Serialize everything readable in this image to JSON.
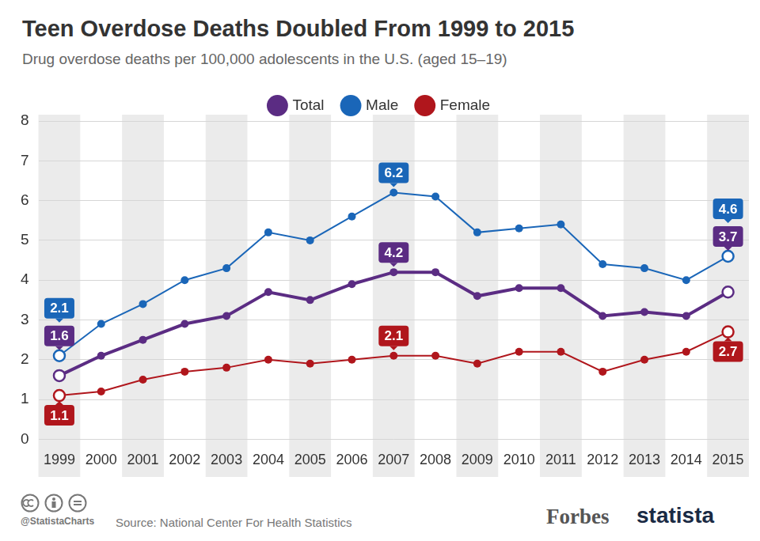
{
  "chart_data": {
    "type": "line",
    "title": "Teen Overdose Deaths Doubled From 1999 to 2015",
    "subtitle": "Drug overdose deaths per 100,000 adolescents in the U.S. (aged 15–19)",
    "categories": [
      "1999",
      "2000",
      "2001",
      "2002",
      "2003",
      "2004",
      "2005",
      "2006",
      "2007",
      "2008",
      "2009",
      "2010",
      "2011",
      "2012",
      "2013",
      "2014",
      "2015"
    ],
    "series": [
      {
        "name": "Total",
        "color": "#5b2c83",
        "line_style": "bold",
        "values": [
          1.6,
          2.1,
          2.5,
          2.9,
          3.1,
          3.7,
          3.5,
          3.9,
          4.2,
          4.2,
          3.6,
          3.8,
          3.8,
          3.1,
          3.2,
          3.1,
          3.7
        ]
      },
      {
        "name": "Male",
        "color": "#1a66b8",
        "line_style": "solid",
        "values": [
          2.1,
          2.9,
          3.4,
          4.0,
          4.3,
          5.2,
          5.0,
          5.6,
          6.2,
          6.1,
          5.2,
          5.3,
          5.4,
          4.4,
          4.3,
          4.0,
          4.6
        ]
      },
      {
        "name": "Female",
        "color": "#b0161c",
        "line_style": "solid",
        "values": [
          1.1,
          1.2,
          1.5,
          1.7,
          1.8,
          2.0,
          1.9,
          2.0,
          2.1,
          2.1,
          1.9,
          2.2,
          2.2,
          1.7,
          2.0,
          2.2,
          2.7
        ]
      }
    ],
    "ylim": [
      0,
      8
    ],
    "yticks": [
      0,
      1,
      2,
      3,
      4,
      5,
      6,
      7,
      8
    ],
    "grid": true,
    "legend": "top",
    "marker": "circle",
    "annotations": [
      {
        "series": "Male",
        "category": "1999",
        "value": 2.1
      },
      {
        "series": "Total",
        "category": "1999",
        "value": 1.6
      },
      {
        "series": "Female",
        "category": "1999",
        "value": 1.1
      },
      {
        "series": "Male",
        "category": "2007",
        "value": 6.2
      },
      {
        "series": "Total",
        "category": "2007",
        "value": 4.2
      },
      {
        "series": "Female",
        "category": "2007",
        "value": 2.1
      },
      {
        "series": "Male",
        "category": "2015",
        "value": 4.6
      },
      {
        "series": "Total",
        "category": "2015",
        "value": 3.7
      },
      {
        "series": "Female",
        "category": "2015",
        "value": 2.7
      }
    ],
    "credit": "@StatistaCharts",
    "source": "Source: National Center For Health Statistics",
    "publishers": [
      "Forbes",
      "statista"
    ]
  }
}
